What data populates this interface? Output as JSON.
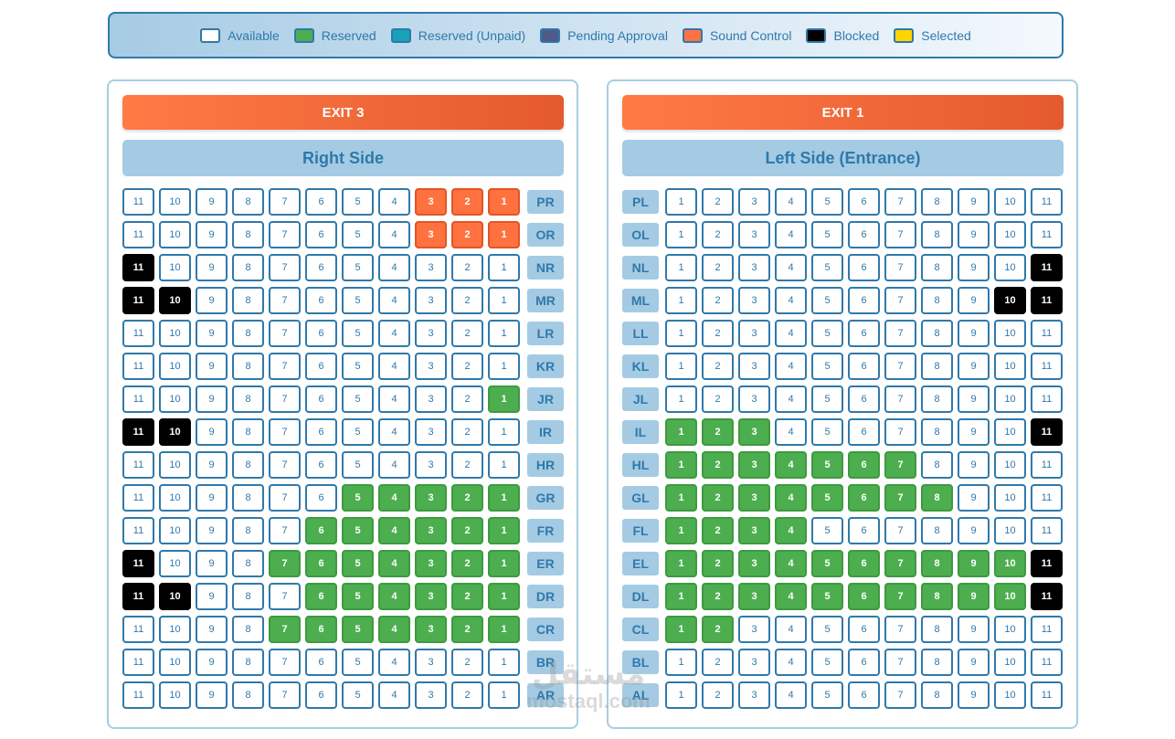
{
  "legend": [
    {
      "label": "Available",
      "color": "#ffffff",
      "border": "#2f79ab"
    },
    {
      "label": "Reserved",
      "color": "#4cae4f",
      "border": "#2f79ab"
    },
    {
      "label": "Reserved (Unpaid)",
      "color": "#17a2b8",
      "border": "#2f79ab"
    },
    {
      "label": "Pending Approval",
      "color": "#4f5a86",
      "border": "#2f79ab"
    },
    {
      "label": "Sound Control",
      "color": "#ff7240",
      "border": "#2f79ab"
    },
    {
      "label": "Blocked",
      "color": "#000000",
      "border": "#2f79ab"
    },
    {
      "label": "Selected",
      "color": "#ffd400",
      "border": "#2f79ab"
    }
  ],
  "colors": {
    "accent": "#2f79ab",
    "reserved": "#4cae4f",
    "sound": "#ff7240",
    "blocked": "#000000"
  },
  "sections": [
    {
      "id": "right",
      "exit": "EXIT 3",
      "title": "Right Side",
      "label_position": "end",
      "seat_order": "desc",
      "rows": [
        {
          "label": "PR",
          "sound": [
            1,
            2,
            3
          ]
        },
        {
          "label": "OR",
          "sound": [
            1,
            2,
            3
          ]
        },
        {
          "label": "NR",
          "blocked": [
            11
          ]
        },
        {
          "label": "MR",
          "blocked": [
            10,
            11
          ]
        },
        {
          "label": "LR"
        },
        {
          "label": "KR"
        },
        {
          "label": "JR",
          "reserved": [
            1
          ]
        },
        {
          "label": "IR",
          "blocked": [
            10,
            11
          ]
        },
        {
          "label": "HR"
        },
        {
          "label": "GR",
          "reserved": [
            1,
            2,
            3,
            4,
            5
          ]
        },
        {
          "label": "FR",
          "reserved": [
            1,
            2,
            3,
            4,
            5,
            6
          ]
        },
        {
          "label": "ER",
          "reserved": [
            1,
            2,
            3,
            4,
            5,
            6,
            7
          ],
          "blocked": [
            11
          ]
        },
        {
          "label": "DR",
          "reserved": [
            1,
            2,
            3,
            4,
            5,
            6
          ],
          "blocked": [
            10,
            11
          ]
        },
        {
          "label": "CR",
          "reserved": [
            1,
            2,
            3,
            4,
            5,
            6,
            7
          ]
        },
        {
          "label": "BR"
        },
        {
          "label": "AR"
        }
      ]
    },
    {
      "id": "left",
      "exit": "EXIT 1",
      "title": "Left Side (Entrance)",
      "label_position": "start",
      "seat_order": "asc",
      "rows": [
        {
          "label": "PL"
        },
        {
          "label": "OL"
        },
        {
          "label": "NL",
          "blocked": [
            11
          ]
        },
        {
          "label": "ML",
          "blocked": [
            10,
            11
          ]
        },
        {
          "label": "LL"
        },
        {
          "label": "KL"
        },
        {
          "label": "JL"
        },
        {
          "label": "IL",
          "reserved": [
            1,
            2,
            3
          ],
          "blocked": [
            11
          ]
        },
        {
          "label": "HL",
          "reserved": [
            1,
            2,
            3,
            4,
            5,
            6,
            7
          ]
        },
        {
          "label": "GL",
          "reserved": [
            1,
            2,
            3,
            4,
            5,
            6,
            7,
            8
          ]
        },
        {
          "label": "FL",
          "reserved": [
            1,
            2,
            3,
            4
          ]
        },
        {
          "label": "EL",
          "reserved": [
            1,
            2,
            3,
            4,
            5,
            6,
            7,
            8,
            9,
            10
          ],
          "blocked": [
            11
          ]
        },
        {
          "label": "DL",
          "reserved": [
            1,
            2,
            3,
            4,
            5,
            6,
            7,
            8,
            9,
            10
          ],
          "blocked": [
            11
          ]
        },
        {
          "label": "CL",
          "reserved": [
            1,
            2
          ]
        },
        {
          "label": "BL"
        },
        {
          "label": "AL"
        }
      ]
    }
  ],
  "seats_per_row": 11,
  "watermark": {
    "arabic": "مستقل",
    "latin": "mostaql.com"
  }
}
